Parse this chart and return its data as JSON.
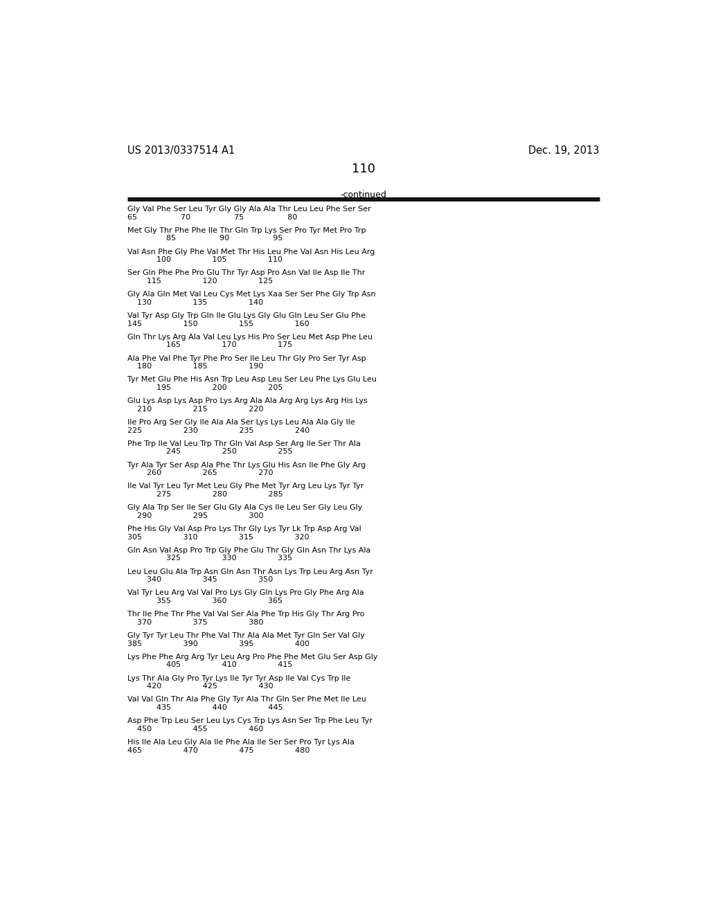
{
  "header_left": "US 2013/0337514 A1",
  "header_right": "Dec. 19, 2013",
  "page_number": "110",
  "continued_label": "-continued",
  "seq_lines": [
    [
      "Gly Val Phe Ser Leu Tyr Gly Gly Ala Ala Thr Leu Leu Phe Ser Ser",
      "65                  70                  75                  80"
    ],
    [
      "Met Gly Thr Phe Phe Ile Thr Gln Trp Lys Ser Pro Tyr Met Pro Trp",
      "                85                  90                  95"
    ],
    [
      "Val Asn Phe Gly Phe Val Met Thr His Leu Phe Val Asn His Leu Arg",
      "            100                 105                 110"
    ],
    [
      "Ser Gln Phe Phe Pro Glu Thr Tyr Asp Pro Asn Val Ile Asp Ile Thr",
      "        115                 120                 125"
    ],
    [
      "Gly Ala Gln Met Val Leu Cys Met Lys Xaa Ser Ser Phe Gly Trp Asn",
      "    130                 135                 140"
    ],
    [
      "Val Tyr Asp Gly Trp Gln Ile Glu Lys Gly Glu Gln Leu Ser Glu Phe",
      "145                 150                 155                 160"
    ],
    [
      "Gln Thr Lys Arg Ala Val Leu Lys His Pro Ser Leu Met Asp Phe Leu",
      "                165                 170                 175"
    ],
    [
      "Ala Phe Val Phe Tyr Phe Pro Ser Ile Leu Thr Gly Pro Ser Tyr Asp",
      "    180                 185                 190"
    ],
    [
      "Tyr Met Glu Phe His Asn Trp Leu Asp Leu Ser Leu Phe Lys Glu Leu",
      "            195                 200                 205"
    ],
    [
      "Glu Lys Asp Lys Asp Pro Lys Arg Ala Ala Arg Arg Lys Arg His Lys",
      "    210                 215                 220"
    ],
    [
      "Ile Pro Arg Ser Gly Ile Ala Ala Ser Lys Lys Leu Ala Ala Gly Ile",
      "225                 230                 235                 240"
    ],
    [
      "Phe Trp Ile Val Leu Trp Thr Gln Val Asp Ser Arg Ile Ser Thr Ala",
      "                245                 250                 255"
    ],
    [
      "Tyr Ala Tyr Ser Asp Ala Phe Thr Lys Glu His Asn Ile Phe Gly Arg",
      "        260                 265                 270"
    ],
    [
      "Ile Val Tyr Leu Tyr Met Leu Gly Phe Met Tyr Arg Leu Lys Tyr Tyr",
      "            275                 280                 285"
    ],
    [
      "Gly Ala Trp Ser Ile Ser Glu Gly Ala Cys Ile Leu Ser Gly Leu Gly",
      "    290                 295                 300"
    ],
    [
      "Phe His Gly Val Asp Pro Lys Thr Gly Lys Tyr Lk Trp Asp Arg Val",
      "305                 310                 315                 320"
    ],
    [
      "Gln Asn Val Asp Pro Trp Gly Phe Glu Thr Gly Gln Asn Thr Lys Ala",
      "                325                 330                 335"
    ],
    [
      "Leu Leu Glu Ala Trp Asn Gln Asn Thr Asn Lys Trp Leu Arg Asn Tyr",
      "        340                 345                 350"
    ],
    [
      "Val Tyr Leu Arg Val Val Pro Lys Gly Gln Lys Pro Gly Phe Arg Ala",
      "            355                 360                 365"
    ],
    [
      "Thr Ile Phe Thr Phe Val Val Ser Ala Phe Trp His Gly Thr Arg Pro",
      "    370                 375                 380"
    ],
    [
      "Gly Tyr Tyr Leu Thr Phe Val Thr Ala Ala Met Tyr Gln Ser Val Gly",
      "385                 390                 395                 400"
    ],
    [
      "Lys Phe Phe Arg Arg Tyr Leu Arg Pro Phe Phe Met Glu Ser Asp Gly",
      "                405                 410                 415"
    ],
    [
      "Lys Thr Ala Gly Pro Tyr Lys Ile Tyr Tyr Asp Ile Val Cys Trp Ile",
      "        420                 425                 430"
    ],
    [
      "Val Val Gln Thr Ala Phe Gly Tyr Ala Thr Gln Ser Phe Met Ile Leu",
      "            435                 440                 445"
    ],
    [
      "Asp Phe Trp Leu Ser Leu Lys Cys Trp Lys Asn Ser Trp Phe Leu Tyr",
      "    450                 455                 460"
    ],
    [
      "His Ile Ala Leu Gly Ala Ile Phe Ala Ile Ser Ser Pro Tyr Lys Ala",
      "465                 470                 475                 480"
    ]
  ]
}
